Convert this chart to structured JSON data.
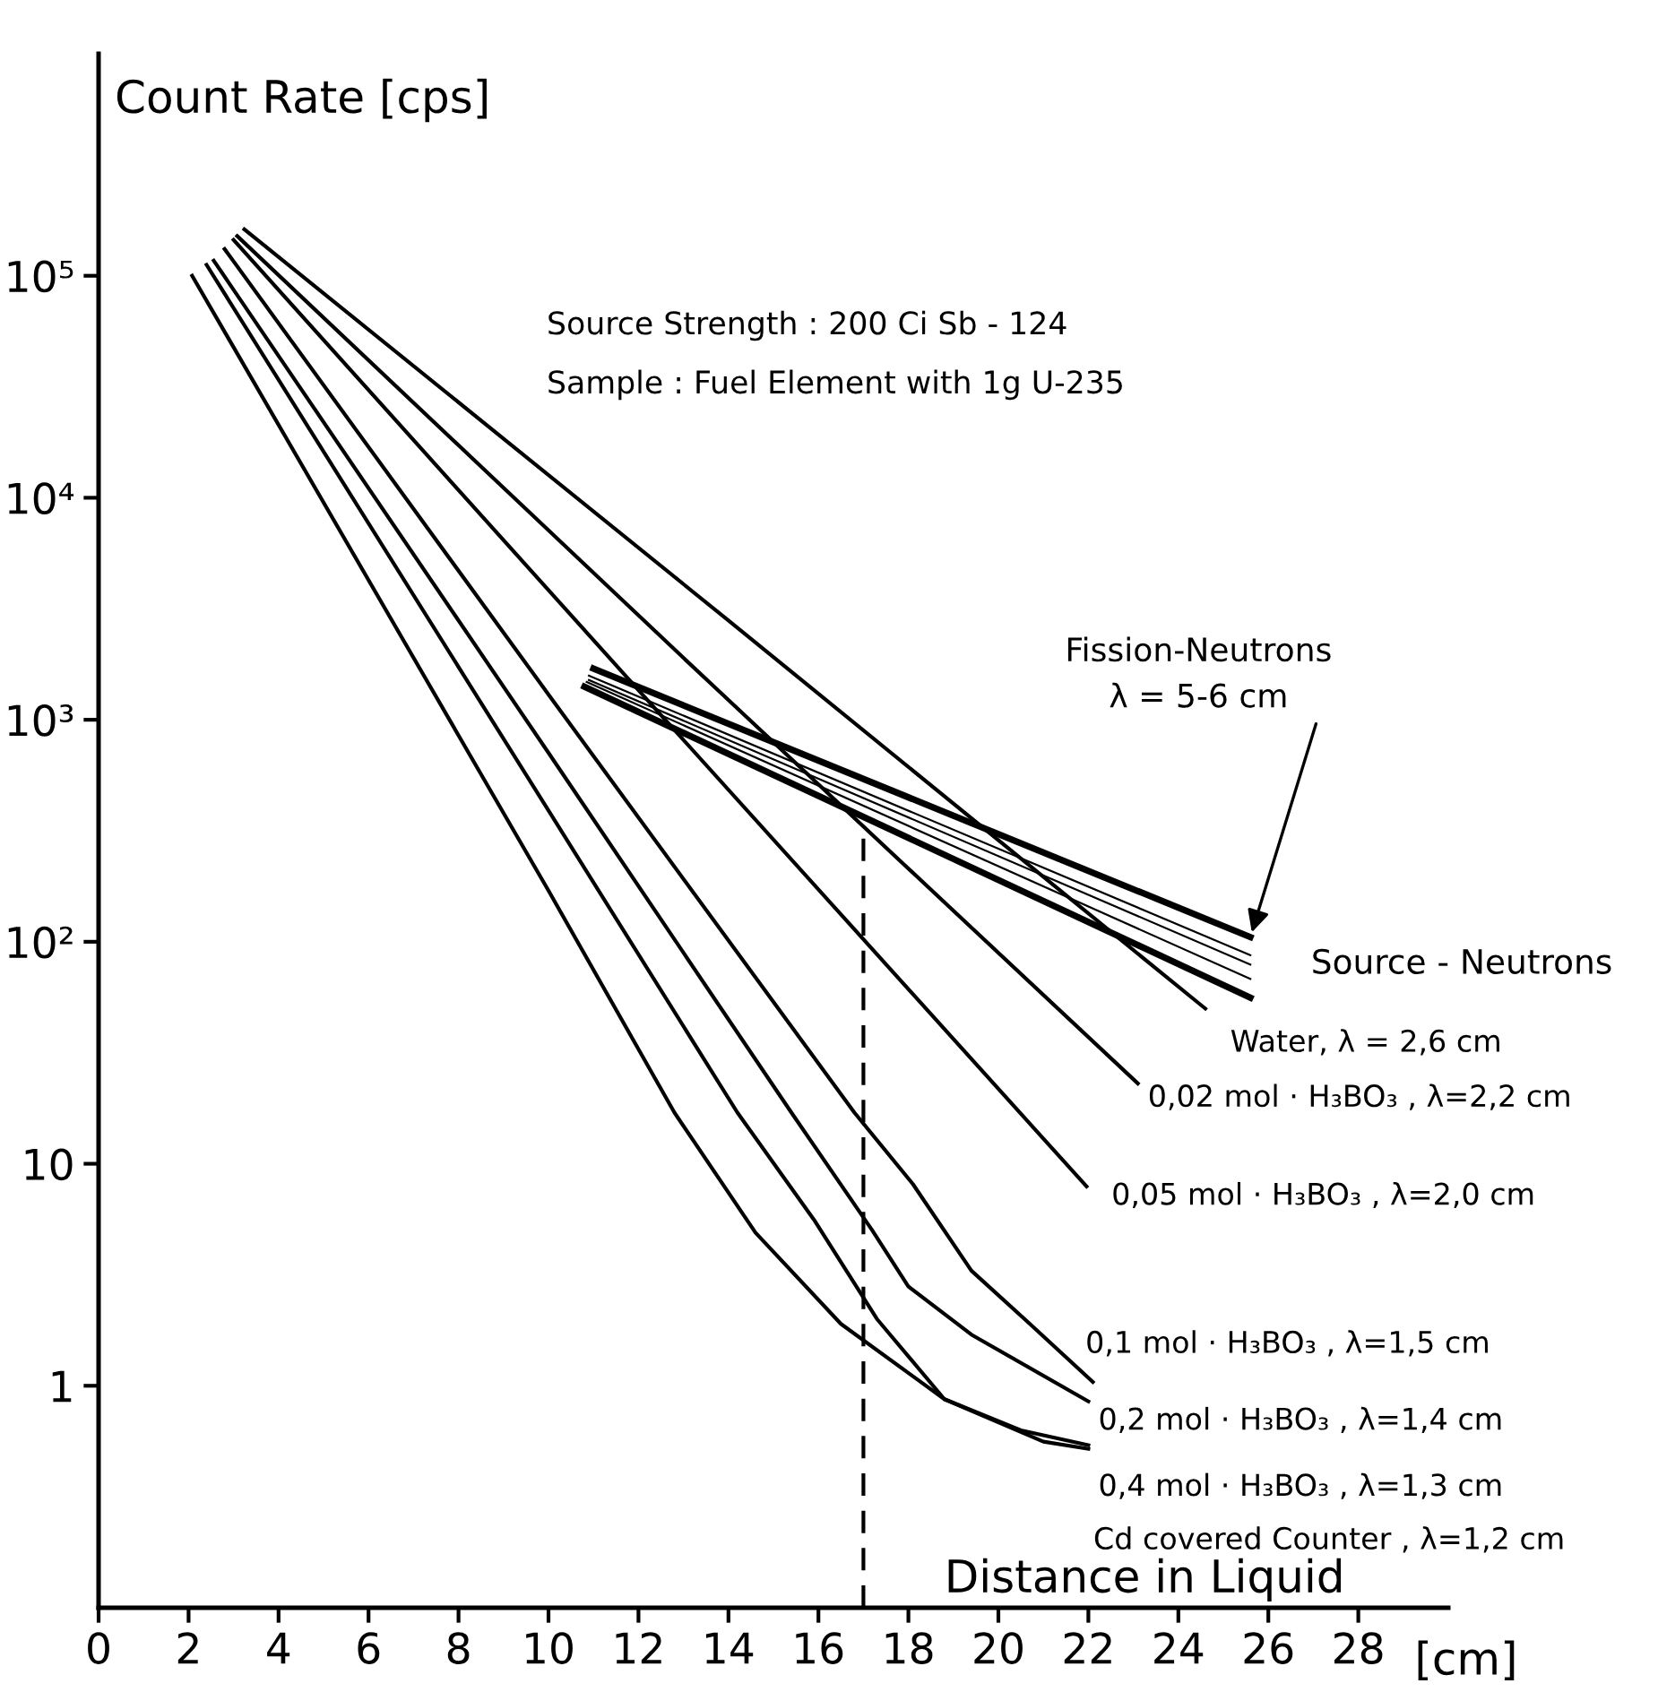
{
  "chart_data": {
    "type": "line",
    "xlabel": "Distance in Liquid",
    "ylabel": "Count Rate [cps]",
    "xlim": [
      0,
      30
    ],
    "xticks": [
      0,
      2,
      4,
      6,
      8,
      10,
      12,
      14,
      16,
      18,
      20,
      22,
      24,
      26,
      28
    ],
    "log": "y",
    "ylim": [
      0.1,
      1000000
    ],
    "yticks": [
      1,
      10,
      {
        "value": 100,
        "label": "10²"
      },
      {
        "value": 1000,
        "label": "10³"
      },
      {
        "value": 10000,
        "label": "10⁴"
      },
      {
        "value": 100000,
        "label": "10⁵"
      }
    ],
    "grid": false,
    "legend": false,
    "marker": "none",
    "line_style": "solid",
    "series": [
      {
        "name": "Water, λ = 2,6 cm",
        "color": "#000000",
        "x": [
          3.24,
          14,
          24.6
        ],
        "values": [
          162000,
          2800,
          50
        ]
      },
      {
        "name": "0,02 mol · H₃BO₃ , λ=2,2 cm",
        "color": "#000000",
        "x": [
          3.08,
          13,
          23.1
        ],
        "values": [
          151000,
          1900,
          23
        ]
      },
      {
        "name": "0,05 mol · H₃BO₃ , λ=2,0 cm",
        "color": "#000000",
        "x": [
          3.0,
          12,
          21.96
        ],
        "values": [
          145000,
          1360,
          7.9
        ]
      },
      {
        "name": "0,1 mol · H₃BO₃ , λ=1,5 cm",
        "color": "#000000",
        "x": [
          2.8,
          10,
          16.8,
          18.1,
          19.4,
          20.7,
          22.1
        ],
        "values": [
          132000,
          1300,
          17,
          8.1,
          3.3,
          1.9,
          1.04
        ]
      },
      {
        "name": "0,2 mol · H₃BO₃ , λ=1,4 cm",
        "color": "#000000",
        "x": [
          2.56,
          10,
          15.4,
          17.2,
          18.0,
          19.4,
          22.0
        ],
        "values": [
          117000,
          710,
          17,
          5.0,
          2.8,
          1.7,
          0.85
        ]
      },
      {
        "name": "0,4 mol · H₃BO₃ , λ=1,3 cm",
        "color": "#000000",
        "x": [
          2.4,
          10,
          14.2,
          15.9,
          17.3,
          18.8,
          20.5,
          22.0
        ],
        "values": [
          112000,
          390,
          17,
          5.6,
          2.0,
          0.87,
          0.63,
          0.54
        ]
      },
      {
        "name": "Cd covered Counter , λ=1,2 cm",
        "color": "#000000",
        "x": [
          2.08,
          10,
          12.8,
          14.6,
          16.5,
          18.8,
          21.0,
          22.0
        ],
        "values": [
          100000,
          170,
          17,
          4.9,
          1.9,
          0.87,
          0.56,
          0.52
        ]
      },
      {
        "color": "#000000",
        "x": [
          11.0,
          25.6
        ],
        "values": [
          1700,
          105
        ]
      },
      {
        "color": "#000000",
        "x": [
          10.9,
          25.6
        ],
        "values": [
          1580,
          87
        ]
      },
      {
        "color": "#000000",
        "x": [
          10.9,
          25.6
        ],
        "values": [
          1510,
          79
        ]
      },
      {
        "color": "#000000",
        "x": [
          10.85,
          25.6
        ],
        "values": [
          1480,
          68
        ]
      },
      {
        "color": "#000000",
        "x": [
          10.8,
          25.6
        ],
        "values": [
          1410,
          56
        ]
      }
    ],
    "ref_lines": [
      {
        "axis": "x",
        "value": 17,
        "color": "#000000",
        "line_style": "dashed"
      }
    ],
    "annotations": [
      "Source Strength : 200 Ci Sb - 124",
      "Sample : Fuel Element with 1g U-235",
      {
        "text": "Fission-Neutrons\nλ = 5-6 cm",
        "x": 25.6,
        "y": 105
      },
      "Source - Neutrons",
      "[cm]"
    ]
  }
}
